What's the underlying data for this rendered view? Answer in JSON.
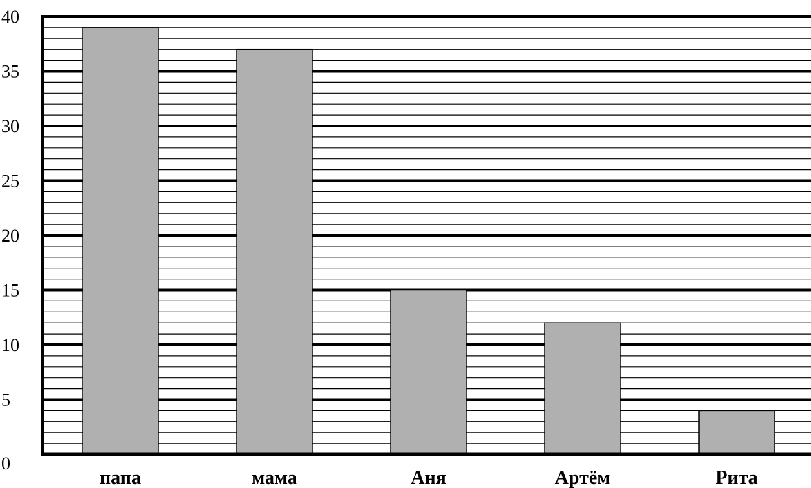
{
  "chart_data": {
    "type": "bar",
    "title": "",
    "xlabel": "",
    "ylabel": "",
    "categories": [
      "папа",
      "мама",
      "Аня",
      "Артём",
      "Рита"
    ],
    "values": [
      39,
      37,
      15,
      12,
      4
    ],
    "ylim": [
      0,
      40
    ],
    "major_ticks": [
      "0",
      "5",
      "10",
      "15",
      "20",
      "25",
      "30",
      "35",
      "40"
    ],
    "major_tick_step": 5,
    "minor_tick_step": 1,
    "grid": true,
    "legend": "none",
    "colors": {
      "bar_fill": "#b0b0b0",
      "bar_stroke": "#000000",
      "grid_major": "#000000",
      "grid_minor": "#000000",
      "axis": "#000000",
      "background": "#ffffff"
    }
  }
}
